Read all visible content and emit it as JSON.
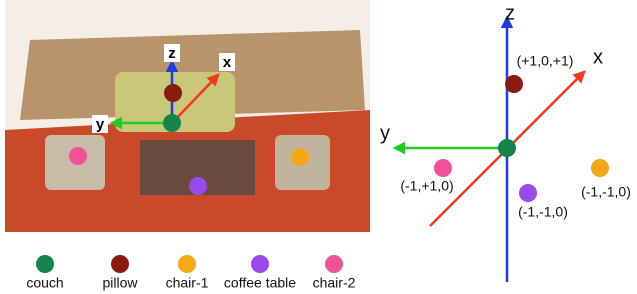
{
  "scene": {
    "axes": [
      "z",
      "x",
      "y"
    ]
  },
  "diagram": {
    "axes": [
      "z",
      "x",
      "y"
    ],
    "points": [
      {
        "label": "(+1,0,+1)"
      },
      {
        "label": "(-1,+1,0)"
      },
      {
        "label": "(-1,-1,0)"
      },
      {
        "label": "(-1,-1,0)"
      }
    ]
  },
  "legend": [
    {
      "label": "couch",
      "color": "#14854a"
    },
    {
      "label": "pillow",
      "color": "#8b1a10"
    },
    {
      "label": "chair-1",
      "color": "#f4a816"
    },
    {
      "label": "coffee table",
      "color": "#9a48f0"
    },
    {
      "label": "chair-2",
      "color": "#f0529a"
    }
  ]
}
